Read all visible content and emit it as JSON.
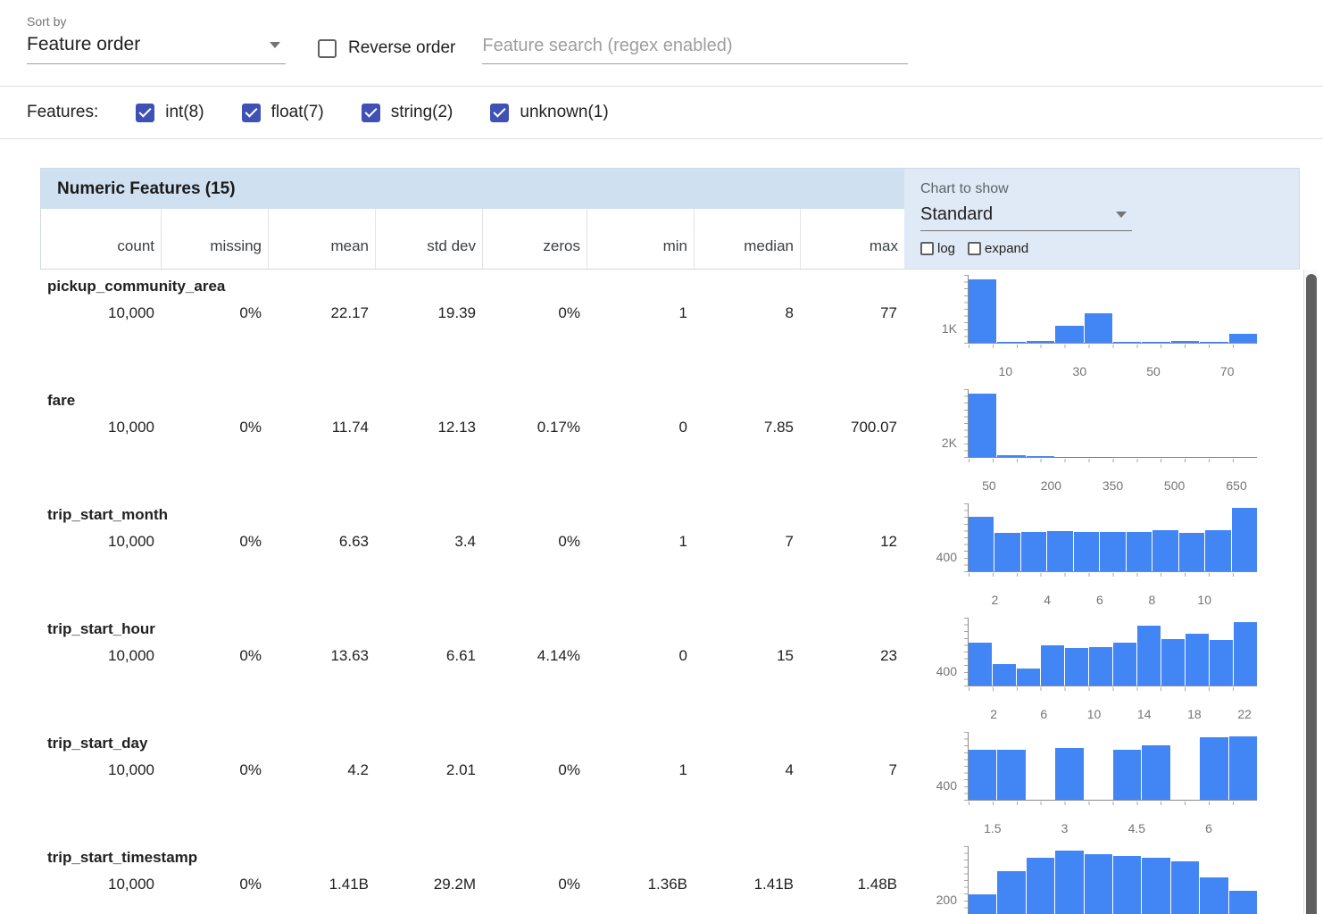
{
  "toolbar": {
    "sort_by_label": "Sort by",
    "sort_value": "Feature order",
    "reverse_label": "Reverse order",
    "reverse_checked": false,
    "search_placeholder": "Feature search (regex enabled)"
  },
  "features_bar": {
    "label": "Features:",
    "filters": [
      {
        "label": "int(8)",
        "checked": true
      },
      {
        "label": "float(7)",
        "checked": true
      },
      {
        "label": "string(2)",
        "checked": true
      },
      {
        "label": "unknown(1)",
        "checked": true
      }
    ]
  },
  "table": {
    "title": "Numeric Features (15)",
    "chart_controls": {
      "label": "Chart to show",
      "selected": "Standard",
      "log_label": "log",
      "log_checked": false,
      "expand_label": "expand",
      "expand_checked": false
    },
    "columns": [
      "count",
      "missing",
      "mean",
      "std dev",
      "zeros",
      "min",
      "median",
      "max"
    ],
    "rows": [
      {
        "name": "pickup_community_area",
        "values": [
          "10,000",
          "0%",
          "22.17",
          "19.39",
          "0%",
          "1",
          "8",
          "77"
        ]
      },
      {
        "name": "fare",
        "values": [
          "10,000",
          "0%",
          "11.74",
          "12.13",
          "0.17%",
          "0",
          "7.85",
          "700.07"
        ]
      },
      {
        "name": "trip_start_month",
        "values": [
          "10,000",
          "0%",
          "6.63",
          "3.4",
          "0%",
          "1",
          "7",
          "12"
        ]
      },
      {
        "name": "trip_start_hour",
        "values": [
          "10,000",
          "0%",
          "13.63",
          "6.61",
          "4.14%",
          "0",
          "15",
          "23"
        ]
      },
      {
        "name": "trip_start_day",
        "values": [
          "10,000",
          "0%",
          "4.2",
          "2.01",
          "0%",
          "1",
          "4",
          "7"
        ]
      },
      {
        "name": "trip_start_timestamp",
        "values": [
          "10,000",
          "0%",
          "1.41B",
          "29.2M",
          "0%",
          "1.36B",
          "1.41B",
          "1.48B"
        ]
      }
    ]
  },
  "colors": {
    "accent": "#3f51b5",
    "bar": "#4285f4",
    "band": "#cfe0f0",
    "band_light": "#dfeaf6"
  },
  "chart_data": [
    {
      "type": "bar",
      "feature": "pickup_community_area",
      "ylabel": "1K",
      "xrange": [
        0,
        78
      ],
      "ticks": [
        10,
        30,
        50,
        70
      ],
      "values": [
        4100,
        60,
        90,
        1100,
        1900,
        60,
        40,
        90,
        70,
        600
      ]
    },
    {
      "type": "bar",
      "feature": "fare",
      "ylabel": "2K",
      "xrange": [
        0,
        700
      ],
      "ticks": [
        50,
        200,
        350,
        500,
        650
      ],
      "values": [
        9400,
        250,
        120,
        60,
        30,
        15,
        8,
        5,
        3,
        2
      ]
    },
    {
      "type": "bar",
      "feature": "trip_start_month",
      "ylabel": "400",
      "xrange": [
        1,
        12
      ],
      "ticks": [
        2,
        4,
        6,
        8,
        10
      ],
      "values": [
        1000,
        700,
        720,
        730,
        715,
        710,
        720,
        745,
        705,
        745,
        1150
      ]
    },
    {
      "type": "bar",
      "feature": "trip_start_hour",
      "ylabel": "400",
      "xrange": [
        0,
        23
      ],
      "ticks": [
        2,
        6,
        10,
        14,
        18,
        22
      ],
      "values": [
        650,
        320,
        260,
        600,
        560,
        580,
        640,
        900,
        700,
        780,
        680,
        950
      ]
    },
    {
      "type": "bar",
      "feature": "trip_start_day",
      "ylabel": "400",
      "xrange": [
        1,
        7
      ],
      "ticks": [
        1.5,
        3,
        4.5,
        6
      ],
      "values": [
        1430,
        1440,
        0,
        1500,
        0,
        1430,
        1560,
        0,
        1800,
        1820
      ]
    },
    {
      "type": "bar",
      "feature": "trip_start_timestamp",
      "ylabel": "200",
      "xrange": [
        0,
        1
      ],
      "ticks": [],
      "values": [
        300,
        650,
        850,
        950,
        900,
        870,
        850,
        800,
        550,
        350
      ]
    }
  ]
}
